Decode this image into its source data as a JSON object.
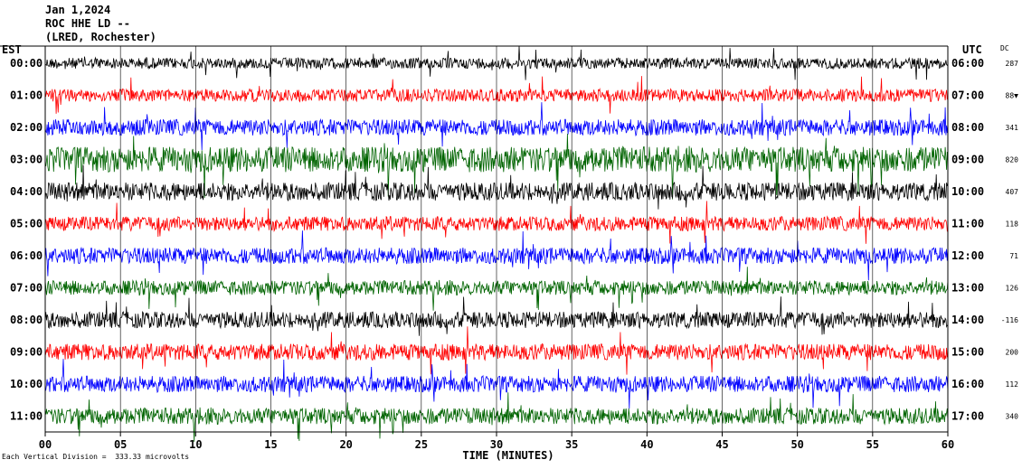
{
  "header": {
    "line1": "Jan 1,2024",
    "line2": "ROC HHE LD --",
    "line3": "(LRED, Rochester)"
  },
  "left_label": "EST",
  "right_label": "UTC",
  "dc_label": "DC",
  "footer": "Each Vertical Division =  333.33 microvolts",
  "colors": {
    "black": "#000000",
    "red": "#ff0000",
    "blue": "#0000ff",
    "green": "#006400"
  },
  "chart_data": {
    "type": "line",
    "title": "",
    "xlabel": "TIME (MINUTES)",
    "ylabel": "",
    "xlim": [
      0,
      60
    ],
    "x_ticks": [
      "00",
      "05",
      "10",
      "15",
      "20",
      "25",
      "30",
      "35",
      "40",
      "45",
      "50",
      "55",
      "60"
    ],
    "grid": "vertical lines every 5 minutes",
    "series": [
      {
        "est": "00:00",
        "utc": "06:00",
        "dc": "287",
        "color": "black"
      },
      {
        "est": "01:00",
        "utc": "07:00",
        "dc": "88▼",
        "color": "red"
      },
      {
        "est": "02:00",
        "utc": "08:00",
        "dc": "341",
        "color": "blue"
      },
      {
        "est": "03:00",
        "utc": "09:00",
        "dc": "820",
        "color": "green"
      },
      {
        "est": "04:00",
        "utc": "10:00",
        "dc": "407",
        "color": "black"
      },
      {
        "est": "05:00",
        "utc": "11:00",
        "dc": "118",
        "color": "red"
      },
      {
        "est": "06:00",
        "utc": "12:00",
        "dc": "71",
        "color": "blue"
      },
      {
        "est": "07:00",
        "utc": "13:00",
        "dc": "126",
        "color": "green"
      },
      {
        "est": "08:00",
        "utc": "14:00",
        "dc": "-116",
        "color": "black"
      },
      {
        "est": "09:00",
        "utc": "15:00",
        "dc": "200",
        "color": "red"
      },
      {
        "est": "10:00",
        "utc": "16:00",
        "dc": "112",
        "color": "blue"
      },
      {
        "est": "11:00",
        "utc": "17:00",
        "dc": "340",
        "color": "green"
      }
    ]
  }
}
